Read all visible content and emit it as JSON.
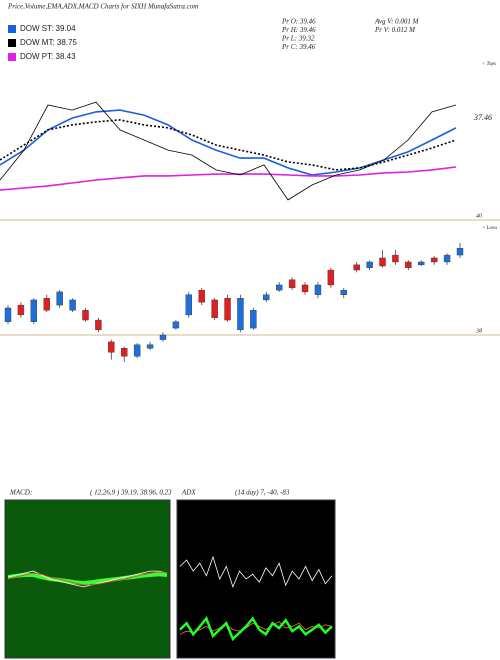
{
  "header": {
    "title": "Price,Volume,EMA,ADX,MACD Charts for SIXH MunafaSutra.com",
    "stats": [
      "Pr  O: 39.46",
      "Pr  H: 39.46",
      "Pr  L: 39.32",
      "Pr  C: 39.46",
      "Avg V: 0.001 M",
      "Pr  V: 0.012 M"
    ]
  },
  "chart_data": [
    {
      "type": "line",
      "ylim": [
        35,
        42
      ],
      "annotations": [
        "37.46",
        "< Tops"
      ],
      "series": [
        {
          "name": "DOW ST: 39.04",
          "color": "#1a5fe0",
          "values": [
            37.41,
            38.06,
            38.94,
            39.46,
            39.73,
            39.81,
            39.59,
            39.16,
            38.5,
            38.06,
            37.71,
            37.71,
            37.28,
            36.97,
            37.1,
            37.28,
            37.63,
            37.98,
            38.5,
            39.03
          ]
        },
        {
          "name": "DOW MT: 38.75",
          "color": "#000000",
          "dash": true,
          "values": [
            37.63,
            38.28,
            38.94,
            39.16,
            39.29,
            39.38,
            39.16,
            39.03,
            38.72,
            38.28,
            38.06,
            37.84,
            37.54,
            37.41,
            37.19,
            37.28,
            37.54,
            37.84,
            38.15,
            38.5
          ]
        },
        {
          "name": "DOW PT: 38.43",
          "color": "#e020e0",
          "values": [
            36.31,
            36.4,
            36.49,
            36.62,
            36.75,
            36.84,
            36.93,
            36.93,
            36.97,
            37.01,
            37.01,
            37.01,
            36.97,
            36.93,
            36.93,
            36.97,
            37.06,
            37.1,
            37.19,
            37.32
          ]
        },
        {
          "color": "#000000",
          "values": [
            36.75,
            38.06,
            40.03,
            39.81,
            40.16,
            38.94,
            38.5,
            38.06,
            37.84,
            37.19,
            36.97,
            37.41,
            35.88,
            36.53,
            36.97,
            37.19,
            37.63,
            38.5,
            39.73,
            40.03
          ]
        }
      ]
    },
    {
      "type": "candlestick",
      "ylim": [
        37.4,
        40.6
      ],
      "yticks": [
        38,
        40
      ],
      "annotation": "< Lows",
      "up_color": "#1e6fd9",
      "down_color": "#e02020",
      "open": [
        38.23,
        38.52,
        38.23,
        38.64,
        38.52,
        38.43,
        38.43,
        38.26,
        37.88,
        37.77,
        37.63,
        37.77,
        37.92,
        38.12,
        38.35,
        38.78,
        38.61,
        38.64,
        38.09,
        38.12,
        38.61,
        38.78,
        38.96,
        38.87,
        38.7,
        39.13,
        38.7,
        39.22,
        39.17,
        39.34,
        39.39,
        39.27,
        39.22,
        39.34,
        39.27,
        39.39
      ],
      "high": [
        38.52,
        38.57,
        38.64,
        38.7,
        38.78,
        38.64,
        38.47,
        38.3,
        37.92,
        37.8,
        37.86,
        37.88,
        38.05,
        38.26,
        38.75,
        38.82,
        38.64,
        38.7,
        38.7,
        38.47,
        38.75,
        38.92,
        39.0,
        38.92,
        38.92,
        39.17,
        38.82,
        39.27,
        39.3,
        39.48,
        39.48,
        39.3,
        39.3,
        39.37,
        39.42,
        39.6
      ],
      "low": [
        38.19,
        38.3,
        38.19,
        38.4,
        38.47,
        38.4,
        38.23,
        38.05,
        37.57,
        37.53,
        37.6,
        37.74,
        37.88,
        38.09,
        38.3,
        38.52,
        38.26,
        38.23,
        38.05,
        38.09,
        38.57,
        38.75,
        38.78,
        38.7,
        38.64,
        38.82,
        38.64,
        39.09,
        39.13,
        39.17,
        39.22,
        39.13,
        39.2,
        39.22,
        39.22,
        39.34
      ],
      "close": [
        38.47,
        38.35,
        38.61,
        38.43,
        38.75,
        38.61,
        38.26,
        38.09,
        37.7,
        37.63,
        37.83,
        37.83,
        38.0,
        38.23,
        38.7,
        38.57,
        38.3,
        38.26,
        38.64,
        38.43,
        38.7,
        38.87,
        38.82,
        38.75,
        38.87,
        38.87,
        38.78,
        39.13,
        39.27,
        39.2,
        39.27,
        39.17,
        39.27,
        39.27,
        39.39,
        39.51
      ]
    },
    {
      "type": "line",
      "title": "MACD:",
      "subtitle": "( 12,26,9 ) 39.19, 38.96, 0.23",
      "ylim": [
        -2,
        2
      ],
      "background": "#0b5a0b",
      "series": [
        {
          "color": "#33ff33",
          "width": 4,
          "values": [
            0.05,
            0.08,
            0.1,
            0.1,
            0.05,
            0.0,
            -0.02,
            -0.05,
            -0.08,
            -0.1,
            -0.08,
            -0.05,
            -0.02,
            0.0,
            0.03,
            0.05,
            0.08,
            0.1,
            0.12,
            0.1
          ]
        },
        {
          "color": "#ffffff",
          "values": [
            0.05,
            0.1,
            0.15,
            0.2,
            0.1,
            0.0,
            -0.05,
            -0.1,
            -0.15,
            -0.2,
            -0.15,
            -0.1,
            -0.05,
            0.0,
            0.05,
            0.1,
            0.15,
            0.2,
            0.2,
            0.15
          ]
        },
        {
          "color": "#ff3030",
          "values": [
            0.0,
            0.05,
            0.1,
            0.15,
            0.12,
            0.05,
            0.0,
            -0.05,
            -0.1,
            -0.15,
            -0.15,
            -0.12,
            -0.08,
            -0.03,
            0.0,
            0.05,
            0.1,
            0.15,
            0.18,
            0.15
          ]
        }
      ]
    },
    {
      "type": "line",
      "title": "ADX",
      "subtitle": "(14 day) 7, -40, -83",
      "ylim": [
        0,
        100
      ],
      "background": "#000000",
      "series": [
        {
          "color": "#ffffff",
          "values": [
            58,
            62,
            55,
            60,
            52,
            64,
            50,
            58,
            45,
            55,
            50,
            53,
            48,
            57,
            52,
            60,
            46,
            55,
            50,
            58,
            49,
            56,
            47,
            52
          ]
        },
        {
          "color": "#ff7a1a",
          "values": [
            15,
            17,
            16,
            18,
            20,
            17,
            19,
            21,
            18,
            17,
            19,
            22,
            20,
            18,
            21,
            23,
            19,
            20,
            22,
            18,
            20,
            19,
            21,
            20
          ]
        },
        {
          "color": "#22ff22",
          "width": 2.5,
          "values": [
            18,
            22,
            15,
            20,
            25,
            14,
            18,
            22,
            12,
            16,
            20,
            25,
            18,
            15,
            22,
            19,
            24,
            17,
            20,
            15,
            18,
            21,
            16,
            20
          ]
        }
      ]
    }
  ]
}
